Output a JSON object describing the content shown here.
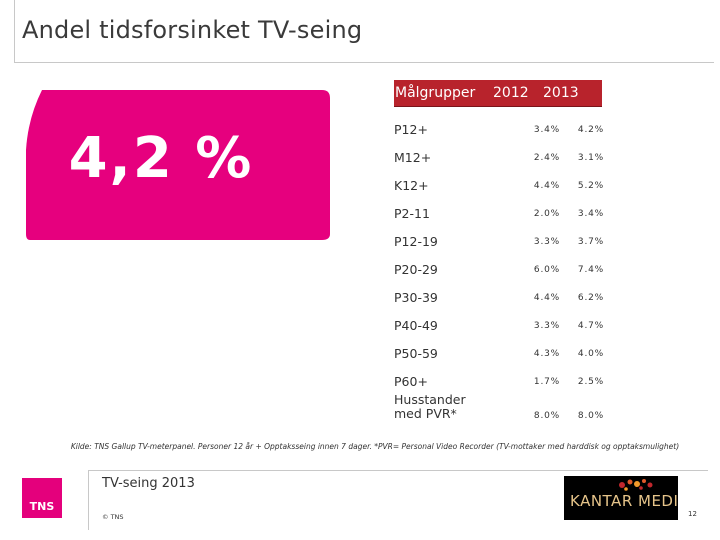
{
  "slide": {
    "title": "Andel tidsforsinket TV-seing",
    "highlight_value": "4,2 %",
    "accent_color": "#e6007e",
    "header_color": "#b8232c"
  },
  "table": {
    "headers": [
      "Målgrupper",
      "2012",
      "2013"
    ],
    "rows": [
      {
        "group": "P12+",
        "y2012": "3.4%",
        "y2013": "4.2%"
      },
      {
        "group": "M12+",
        "y2012": "2.4%",
        "y2013": "3.1%"
      },
      {
        "group": "K12+",
        "y2012": "4.4%",
        "y2013": "5.2%"
      },
      {
        "group": "P2-11",
        "y2012": "2.0%",
        "y2013": "3.4%"
      },
      {
        "group": "P12-19",
        "y2012": "3.3%",
        "y2013": "3.7%"
      },
      {
        "group": "P20-29",
        "y2012": "6.0%",
        "y2013": "7.4%"
      },
      {
        "group": "P30-39",
        "y2012": "4.4%",
        "y2013": "6.2%"
      },
      {
        "group": "P40-49",
        "y2012": "3.3%",
        "y2013": "4.7%"
      },
      {
        "group": "P50-59",
        "y2012": "4.3%",
        "y2013": "4.0%"
      },
      {
        "group": "P60+",
        "y2012": "1.7%",
        "y2013": "2.5%"
      },
      {
        "group": "Husstander med PVR*",
        "y2012": "8.0%",
        "y2013": "8.0%"
      }
    ]
  },
  "footnote": "Kilde: TNS Gallup TV-meterpanel. Personer 12 år + Opptaksseing innen 7 dager. *PVR= Personal Video Recorder (TV-mottaker med harddisk og opptaksmulighet)",
  "footer": {
    "title": "TV-seing 2013",
    "copyright": "© TNS",
    "page_number": "12",
    "tns_logo_text": "TNS",
    "kantar_logo_text": "KANTAR MEDIA"
  }
}
